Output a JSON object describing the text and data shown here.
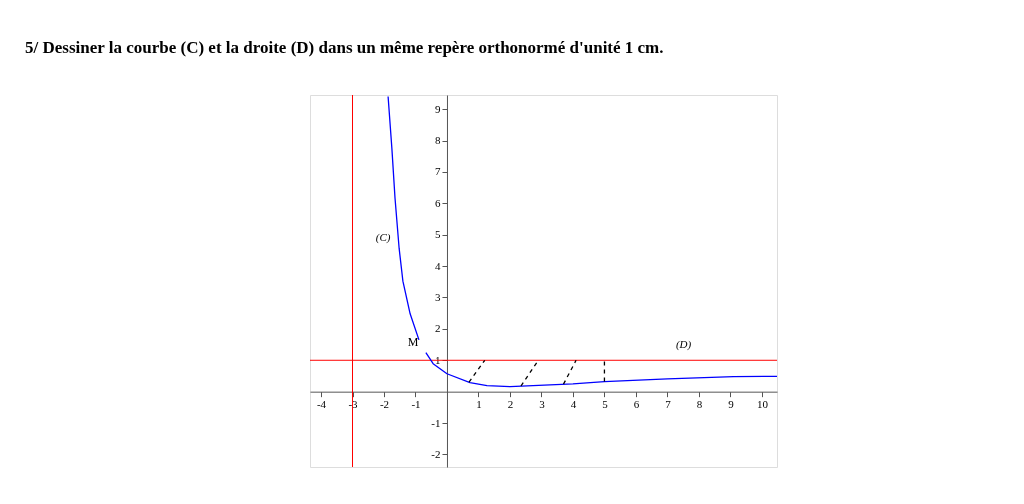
{
  "chart_data": {
    "type": "line",
    "title": "5/  Dessiner la courbe  (C)  et la droite  (D)  dans un même repère orthonormé d'unité  1 cm.",
    "xlim": [
      -4.35,
      10.48
    ],
    "ylim": [
      -2.4,
      9.45
    ],
    "xticks": [
      -4,
      -3,
      -2,
      -1,
      1,
      2,
      3,
      4,
      5,
      6,
      7,
      8,
      9,
      10
    ],
    "yticks": [
      -2,
      -1,
      1,
      2,
      3,
      4,
      5,
      6,
      7,
      8,
      9
    ],
    "grid": false,
    "legend": false,
    "marker": "none",
    "series": [
      {
        "name": "(C)",
        "color": "#0000ff",
        "line_style": "solid",
        "x": [
          -1.87,
          -1.75,
          -1.65,
          -1.52,
          -1.4,
          -1.17,
          -0.89,
          -0.78,
          -0.67,
          -0.44,
          0,
          0.73,
          1.27,
          2,
          2.73,
          4,
          5,
          7,
          9.1,
          10.48
        ],
        "values": [
          9.4,
          7.75,
          6.16,
          4.57,
          3.52,
          2.48,
          1.65,
          null,
          1.24,
          0.89,
          0.57,
          0.29,
          0.19,
          0.16,
          0.19,
          0.25,
          0.32,
          0.41,
          0.48,
          0.49
        ]
      },
      {
        "color": "#000000",
        "line_style": "dashed",
        "x": [
          0.7,
          1.2
        ],
        "values": [
          0.3,
          1
        ]
      },
      {
        "color": "#000000",
        "line_style": "dashed",
        "x": [
          2.35,
          2.9
        ],
        "values": [
          0.18,
          1
        ]
      },
      {
        "color": "#000000",
        "line_style": "dashed",
        "x": [
          3.7,
          4.1
        ],
        "values": [
          0.24,
          1
        ]
      },
      {
        "color": "#000000",
        "line_style": "dashed",
        "x": [
          5,
          5
        ],
        "values": [
          0.32,
          1
        ]
      }
    ],
    "ref_lines": [
      {
        "axis": "x",
        "value": -3,
        "color": "#ff0000"
      },
      {
        "axis": "y",
        "value": 1,
        "label": "(D)",
        "color": "#ff0000"
      }
    ],
    "annotations": [
      "M"
    ]
  }
}
